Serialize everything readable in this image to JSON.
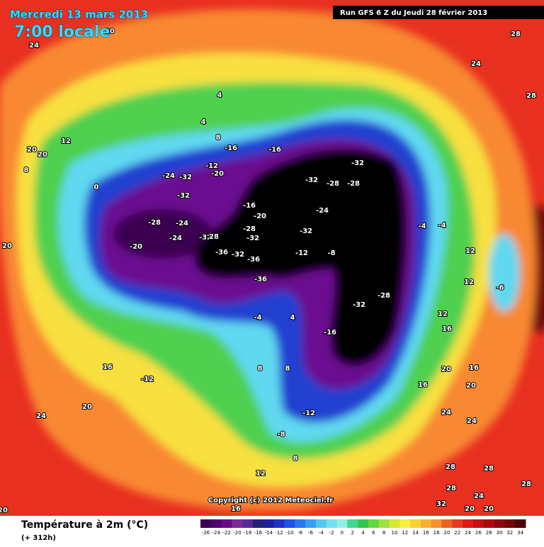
{
  "header": {
    "date_line": "Mercredi 13 mars 2013",
    "time_line": "7:00 locale",
    "run_info": "Run GFS 6 Z du Jeudi 28 février 2013",
    "copyright": "Copyright (c) 2012 Meteociel.fr",
    "legend_title": "Température à 2m (°C)",
    "legend_subtitle": "(+ 312h)"
  },
  "colorbar": {
    "values": [
      -26,
      -24,
      -22,
      -20,
      -18,
      -16,
      -14,
      -12,
      -10,
      -8,
      -6,
      -4,
      -2,
      0,
      2,
      4,
      6,
      8,
      10,
      12,
      14,
      16,
      18,
      20,
      22,
      24,
      26,
      28,
      30,
      32,
      34
    ],
    "colors": [
      "#3c0050",
      "#52006e",
      "#6a0a88",
      "#7d2a9c",
      "#5a2a9a",
      "#26207a",
      "#1e1ea0",
      "#1e30c8",
      "#2050e8",
      "#2878f0",
      "#38a0f0",
      "#50c8f0",
      "#70e0f0",
      "#90f0e0",
      "#40d890",
      "#30c850",
      "#60d840",
      "#a0e040",
      "#d8e830",
      "#f8f040",
      "#f8d030",
      "#f8b030",
      "#f89030",
      "#f06020",
      "#e83820",
      "#e01818",
      "#c81010",
      "#b00810",
      "#900810",
      "#700808",
      "#500404"
    ]
  },
  "map_labels": [
    "20",
    "24",
    "28",
    "24",
    "28",
    "4",
    "4",
    "8",
    "-16",
    "-16",
    "12",
    "20",
    "20",
    "8",
    "-12",
    "-20",
    "-24",
    "-32",
    "-32",
    "-32",
    "-28",
    "-28",
    "0",
    "-32",
    "-16",
    "-20",
    "-24",
    "-28",
    "-24",
    "-28",
    "-32",
    "-4",
    "-4",
    "20",
    "-20",
    "-24",
    "-32",
    "28",
    "-32",
    "-36",
    "-32",
    "-36",
    "-12",
    "-8",
    "12",
    "-36",
    "-28",
    "-32",
    "-6",
    "12",
    "12",
    "16",
    "-16",
    "8",
    "16",
    "-12",
    "20",
    "24",
    "-12",
    "-8",
    "20",
    "20",
    "16",
    "16",
    "24",
    "24",
    "28",
    "28",
    "28",
    "24",
    "28",
    "32",
    "20",
    "20",
    "16",
    "8",
    "12",
    "20",
    "4",
    "8",
    "-4"
  ]
}
